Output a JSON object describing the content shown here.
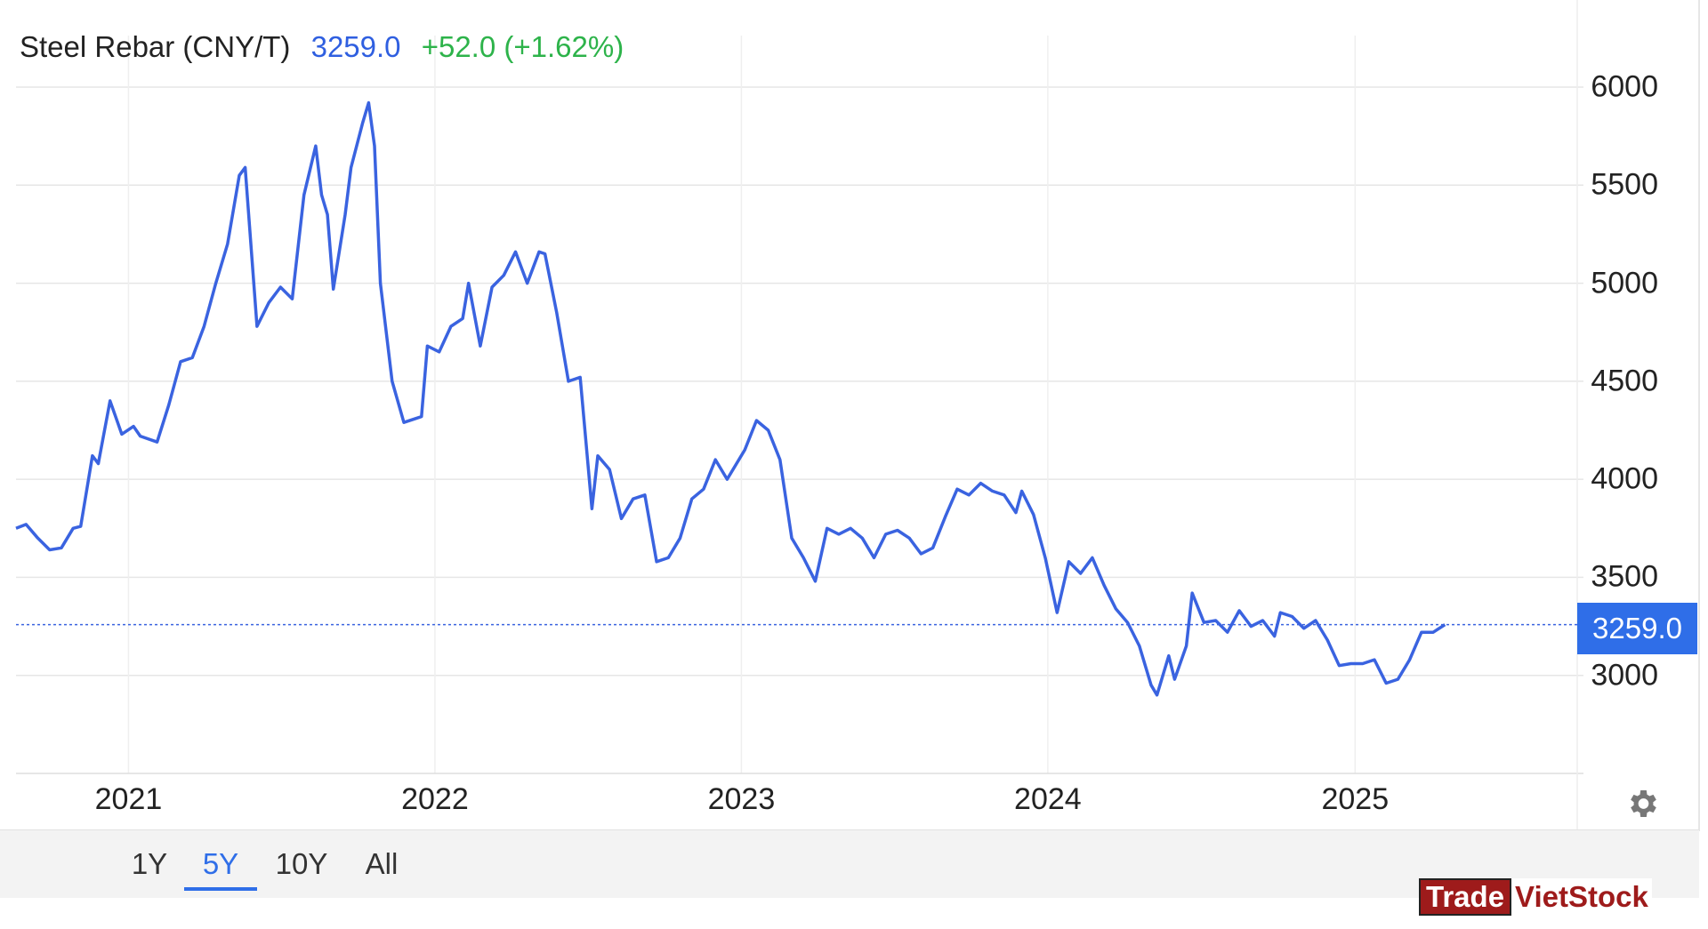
{
  "header": {
    "title": "Steel Rebar (CNY/T)",
    "price": "3259.0",
    "change": "+52.0 (+1.62%)"
  },
  "price_tag": "3259.0",
  "range_tabs": [
    {
      "label": "1Y",
      "active": false
    },
    {
      "label": "5Y",
      "active": true
    },
    {
      "label": "10Y",
      "active": false
    },
    {
      "label": "All",
      "active": false
    }
  ],
  "watermark": {
    "part1": "Trade",
    "part2": "VietStock"
  },
  "colors": {
    "line": "#3a63e0",
    "price_tag": "#2f6ee8",
    "change_positive": "#2db34a",
    "grid": "#e6e6e6"
  },
  "chart_data": {
    "type": "line",
    "title": "Steel Rebar (CNY/T)",
    "xlabel": "",
    "ylabel": "",
    "x_ticks": [
      "2021",
      "2022",
      "2023",
      "2024",
      "2025"
    ],
    "y_ticks": [
      3000,
      3500,
      4000,
      4500,
      5000,
      5500,
      6000
    ],
    "ylim": [
      2500,
      6000
    ],
    "xlim": [
      "2020-08-20",
      "2025-09-30"
    ],
    "grid": true,
    "legend": "none",
    "last_value": 3259.0,
    "series": [
      {
        "points": [
          [
            "2020-08-20",
            3750
          ],
          [
            "2020-09-01",
            3770
          ],
          [
            "2020-09-15",
            3700
          ],
          [
            "2020-09-29",
            3640
          ],
          [
            "2020-10-13",
            3650
          ],
          [
            "2020-10-27",
            3750
          ],
          [
            "2020-11-05",
            3760
          ],
          [
            "2020-11-19",
            4120
          ],
          [
            "2020-11-26",
            4080
          ],
          [
            "2020-12-10",
            4400
          ],
          [
            "2020-12-24",
            4230
          ],
          [
            "2021-01-07",
            4270
          ],
          [
            "2021-01-15",
            4220
          ],
          [
            "2021-02-04",
            4190
          ],
          [
            "2021-02-18",
            4380
          ],
          [
            "2021-03-04",
            4600
          ],
          [
            "2021-03-18",
            4620
          ],
          [
            "2021-04-01",
            4780
          ],
          [
            "2021-04-15",
            5000
          ],
          [
            "2021-04-29",
            5200
          ],
          [
            "2021-05-13",
            5550
          ],
          [
            "2021-05-20",
            5590
          ],
          [
            "2021-06-03",
            4780
          ],
          [
            "2021-06-17",
            4900
          ],
          [
            "2021-07-01",
            4980
          ],
          [
            "2021-07-15",
            4920
          ],
          [
            "2021-07-29",
            5450
          ],
          [
            "2021-08-12",
            5700
          ],
          [
            "2021-08-19",
            5450
          ],
          [
            "2021-08-26",
            5350
          ],
          [
            "2021-09-02",
            4970
          ],
          [
            "2021-09-16",
            5350
          ],
          [
            "2021-09-23",
            5590
          ],
          [
            "2021-10-07",
            5820
          ],
          [
            "2021-10-14",
            5920
          ],
          [
            "2021-10-21",
            5700
          ],
          [
            "2021-10-28",
            5000
          ],
          [
            "2021-11-11",
            4500
          ],
          [
            "2021-11-25",
            4290
          ],
          [
            "2021-12-09",
            4310
          ],
          [
            "2021-12-16",
            4320
          ],
          [
            "2021-12-23",
            4680
          ],
          [
            "2022-01-06",
            4650
          ],
          [
            "2022-01-20",
            4780
          ],
          [
            "2022-02-03",
            4820
          ],
          [
            "2022-02-10",
            5000
          ],
          [
            "2022-02-24",
            4680
          ],
          [
            "2022-03-10",
            4980
          ],
          [
            "2022-03-24",
            5040
          ],
          [
            "2022-04-07",
            5160
          ],
          [
            "2022-04-21",
            5000
          ],
          [
            "2022-05-05",
            5160
          ],
          [
            "2022-05-12",
            5150
          ],
          [
            "2022-05-26",
            4850
          ],
          [
            "2022-06-09",
            4500
          ],
          [
            "2022-06-23",
            4520
          ],
          [
            "2022-07-07",
            3850
          ],
          [
            "2022-07-14",
            4120
          ],
          [
            "2022-07-28",
            4050
          ],
          [
            "2022-08-11",
            3800
          ],
          [
            "2022-08-25",
            3900
          ],
          [
            "2022-09-08",
            3920
          ],
          [
            "2022-09-22",
            3580
          ],
          [
            "2022-10-06",
            3600
          ],
          [
            "2022-10-20",
            3700
          ],
          [
            "2022-11-03",
            3900
          ],
          [
            "2022-11-17",
            3950
          ],
          [
            "2022-12-01",
            4100
          ],
          [
            "2022-12-15",
            4000
          ],
          [
            "2023-01-05",
            4150
          ],
          [
            "2023-01-19",
            4300
          ],
          [
            "2023-02-02",
            4250
          ],
          [
            "2023-02-16",
            4100
          ],
          [
            "2023-03-02",
            3700
          ],
          [
            "2023-03-16",
            3600
          ],
          [
            "2023-03-30",
            3480
          ],
          [
            "2023-04-13",
            3750
          ],
          [
            "2023-04-27",
            3720
          ],
          [
            "2023-05-11",
            3750
          ],
          [
            "2023-05-25",
            3700
          ],
          [
            "2023-06-08",
            3600
          ],
          [
            "2023-06-22",
            3720
          ],
          [
            "2023-07-06",
            3740
          ],
          [
            "2023-07-20",
            3700
          ],
          [
            "2023-08-03",
            3620
          ],
          [
            "2023-08-17",
            3650
          ],
          [
            "2023-09-01",
            3810
          ],
          [
            "2023-09-15",
            3950
          ],
          [
            "2023-09-29",
            3920
          ],
          [
            "2023-10-13",
            3980
          ],
          [
            "2023-10-27",
            3940
          ],
          [
            "2023-11-10",
            3920
          ],
          [
            "2023-11-24",
            3830
          ],
          [
            "2023-12-01",
            3940
          ],
          [
            "2023-12-15",
            3820
          ],
          [
            "2023-12-29",
            3600
          ],
          [
            "2024-01-12",
            3320
          ],
          [
            "2024-01-26",
            3580
          ],
          [
            "2024-02-09",
            3520
          ],
          [
            "2024-02-23",
            3600
          ],
          [
            "2024-03-08",
            3460
          ],
          [
            "2024-03-22",
            3340
          ],
          [
            "2024-04-05",
            3270
          ],
          [
            "2024-04-19",
            3150
          ],
          [
            "2024-05-03",
            2950
          ],
          [
            "2024-05-10",
            2900
          ],
          [
            "2024-05-24",
            3100
          ],
          [
            "2024-05-31",
            2980
          ],
          [
            "2024-06-14",
            3150
          ],
          [
            "2024-06-21",
            3420
          ],
          [
            "2024-07-05",
            3270
          ],
          [
            "2024-07-19",
            3280
          ],
          [
            "2024-08-02",
            3220
          ],
          [
            "2024-08-16",
            3330
          ],
          [
            "2024-08-30",
            3250
          ],
          [
            "2024-09-13",
            3280
          ],
          [
            "2024-09-27",
            3200
          ],
          [
            "2024-10-04",
            3320
          ],
          [
            "2024-10-18",
            3300
          ],
          [
            "2024-11-01",
            3240
          ],
          [
            "2024-11-15",
            3280
          ],
          [
            "2024-11-29",
            3180
          ],
          [
            "2024-12-13",
            3050
          ],
          [
            "2024-12-27",
            3060
          ],
          [
            "2025-01-10",
            3060
          ],
          [
            "2025-01-24",
            3080
          ],
          [
            "2025-02-07",
            2960
          ],
          [
            "2025-02-21",
            2980
          ],
          [
            "2025-03-07",
            3080
          ],
          [
            "2025-03-21",
            3220
          ],
          [
            "2025-04-04",
            3220
          ],
          [
            "2025-04-18",
            3259
          ]
        ]
      }
    ]
  }
}
